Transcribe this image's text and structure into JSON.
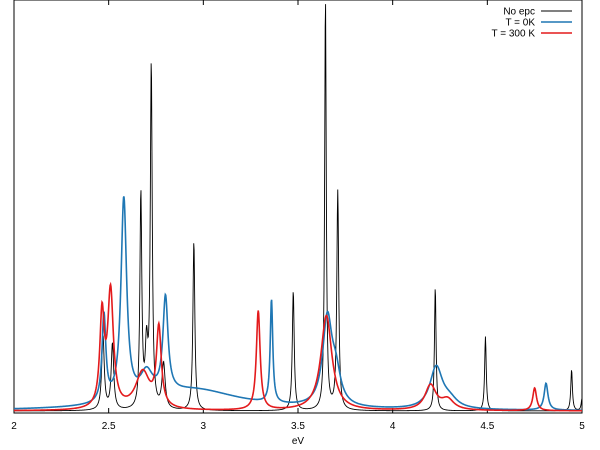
{
  "chart_data": {
    "type": "line",
    "title": "",
    "xlabel": "eV",
    "ylabel": "",
    "xlim": [
      2,
      5
    ],
    "ylim": [
      0,
      100
    ],
    "x_ticks": [
      2,
      2.5,
      3,
      3.5,
      4,
      4.5,
      5
    ],
    "x_tick_labels": [
      "2",
      "2.5",
      "3",
      "3.5",
      "4",
      "4.5",
      "5"
    ],
    "grid": false,
    "legend_position": "top-right",
    "series": [
      {
        "name": "No epc",
        "color": "#000000",
        "baseline": 0.5,
        "peaks": [
          {
            "x": 2.47,
            "h": 18,
            "w": 0.008
          },
          {
            "x": 2.52,
            "h": 16,
            "w": 0.008
          },
          {
            "x": 2.67,
            "h": 52,
            "w": 0.006
          },
          {
            "x": 2.7,
            "h": 14,
            "w": 0.008
          },
          {
            "x": 2.725,
            "h": 83,
            "w": 0.006
          },
          {
            "x": 2.79,
            "h": 11,
            "w": 0.01
          },
          {
            "x": 2.95,
            "h": 41,
            "w": 0.006
          },
          {
            "x": 3.475,
            "h": 29,
            "w": 0.006
          },
          {
            "x": 3.645,
            "h": 100,
            "w": 0.005
          },
          {
            "x": 3.71,
            "h": 53,
            "w": 0.006
          },
          {
            "x": 4.225,
            "h": 30,
            "w": 0.005
          },
          {
            "x": 4.49,
            "h": 18,
            "w": 0.005
          },
          {
            "x": 4.945,
            "h": 10,
            "w": 0.005
          },
          {
            "x": 5.0,
            "h": 3,
            "w": 0.005
          }
        ]
      },
      {
        "name": "T = 0K",
        "color": "#1f77b4",
        "baseline": 0.5,
        "peaks": [
          {
            "x": 2.475,
            "h": 21,
            "w": 0.012
          },
          {
            "x": 2.58,
            "h": 49,
            "w": 0.018
          },
          {
            "x": 2.7,
            "h": 6,
            "w": 0.04
          },
          {
            "x": 2.8,
            "h": 23,
            "w": 0.016
          },
          {
            "x": 2.95,
            "h": 5,
            "w": 0.3
          },
          {
            "x": 3.36,
            "h": 25,
            "w": 0.008
          },
          {
            "x": 3.655,
            "h": 21,
            "w": 0.03
          },
          {
            "x": 3.7,
            "h": 7,
            "w": 0.03
          },
          {
            "x": 4.23,
            "h": 10,
            "w": 0.04
          },
          {
            "x": 4.3,
            "h": 2,
            "w": 0.05
          },
          {
            "x": 4.81,
            "h": 6.5,
            "w": 0.012
          }
        ]
      },
      {
        "name": "T = 300 K",
        "color": "#e31a1c",
        "baseline": 0.5,
        "peaks": [
          {
            "x": 2.465,
            "h": 22,
            "w": 0.014
          },
          {
            "x": 2.51,
            "h": 28,
            "w": 0.018
          },
          {
            "x": 2.68,
            "h": 9,
            "w": 0.045
          },
          {
            "x": 2.765,
            "h": 19,
            "w": 0.015
          },
          {
            "x": 3.29,
            "h": 24,
            "w": 0.012
          },
          {
            "x": 3.65,
            "h": 23,
            "w": 0.035
          },
          {
            "x": 4.2,
            "h": 6,
            "w": 0.035
          },
          {
            "x": 4.29,
            "h": 2.5,
            "w": 0.04
          },
          {
            "x": 4.75,
            "h": 5.5,
            "w": 0.012
          }
        ]
      }
    ]
  }
}
